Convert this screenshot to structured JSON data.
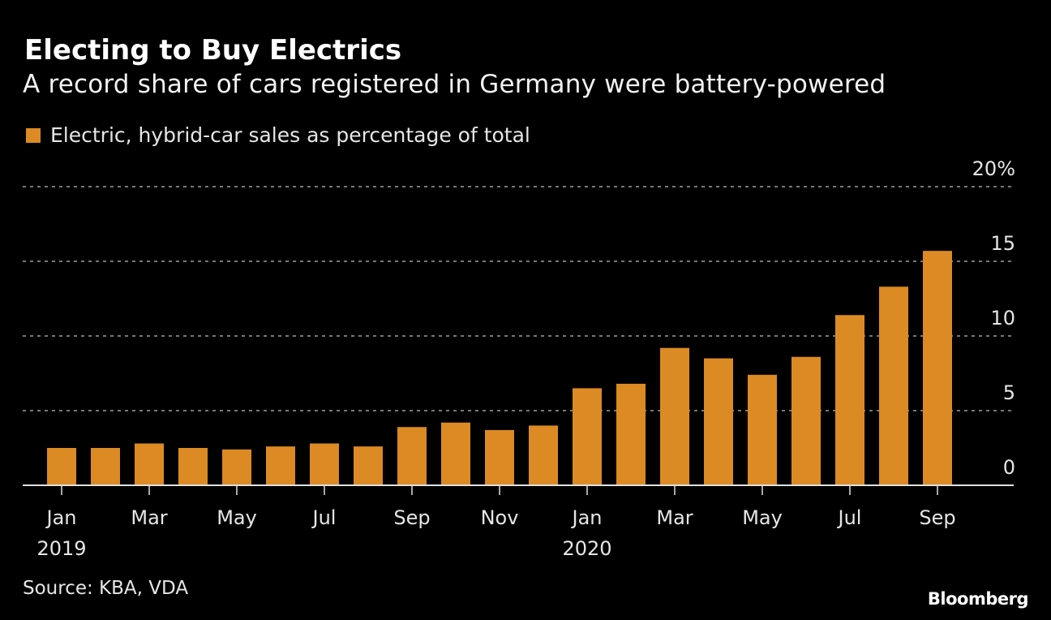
{
  "header": {
    "title": "Electing to Buy Electrics",
    "subtitle": "A record share of cars registered in Germany were battery-powered"
  },
  "footer": {
    "source": "Source: KBA, VDA",
    "brand": "Bloomberg"
  },
  "colors": {
    "bar": "#DC8A23",
    "background": "#000000",
    "gridline": "#777777",
    "axis": "#e0e0e0",
    "text": "#e6e6e6"
  },
  "chart_data": {
    "type": "bar",
    "title": "Electing to Buy Electrics",
    "subtitle": "A record share of cars registered in Germany were battery-powered",
    "xlabel": "",
    "ylabel": "",
    "legend": {
      "entries": [
        "Electric, hybrid-car sales as percentage of total"
      ],
      "position": "top-left"
    },
    "categories": [
      "Jan 2019",
      "Feb 2019",
      "Mar 2019",
      "Apr 2019",
      "May 2019",
      "Jun 2019",
      "Jul 2019",
      "Aug 2019",
      "Sep 2019",
      "Oct 2019",
      "Nov 2019",
      "Dec 2019",
      "Jan 2020",
      "Feb 2020",
      "Mar 2020",
      "Apr 2020",
      "May 2020",
      "Jun 2020",
      "Jul 2020",
      "Aug 2020",
      "Sep 2020"
    ],
    "series": [
      {
        "name": "Electric, hybrid-car sales as percentage of total",
        "values": [
          2.5,
          2.5,
          2.8,
          2.5,
          2.4,
          2.6,
          2.8,
          2.6,
          3.9,
          4.2,
          3.7,
          4.0,
          6.5,
          6.8,
          9.2,
          8.5,
          7.4,
          8.6,
          11.4,
          13.3,
          15.7
        ]
      }
    ],
    "ylim": [
      0,
      20
    ],
    "yticks": [
      0,
      5,
      10,
      15,
      20
    ],
    "ytick_labels": [
      "0",
      "5",
      "10",
      "15",
      "20%"
    ],
    "yaxis_side": "right",
    "grid": true,
    "xtick_labels": [
      {
        "index": 0,
        "month": "Jan",
        "year": "2019"
      },
      {
        "index": 2,
        "month": "Mar",
        "year": ""
      },
      {
        "index": 4,
        "month": "May",
        "year": ""
      },
      {
        "index": 6,
        "month": "Jul",
        "year": ""
      },
      {
        "index": 8,
        "month": "Sep",
        "year": ""
      },
      {
        "index": 10,
        "month": "Nov",
        "year": ""
      },
      {
        "index": 12,
        "month": "Jan",
        "year": "2020"
      },
      {
        "index": 14,
        "month": "Mar",
        "year": ""
      },
      {
        "index": 16,
        "month": "May",
        "year": ""
      },
      {
        "index": 18,
        "month": "Jul",
        "year": ""
      },
      {
        "index": 20,
        "month": "Sep",
        "year": ""
      }
    ]
  }
}
